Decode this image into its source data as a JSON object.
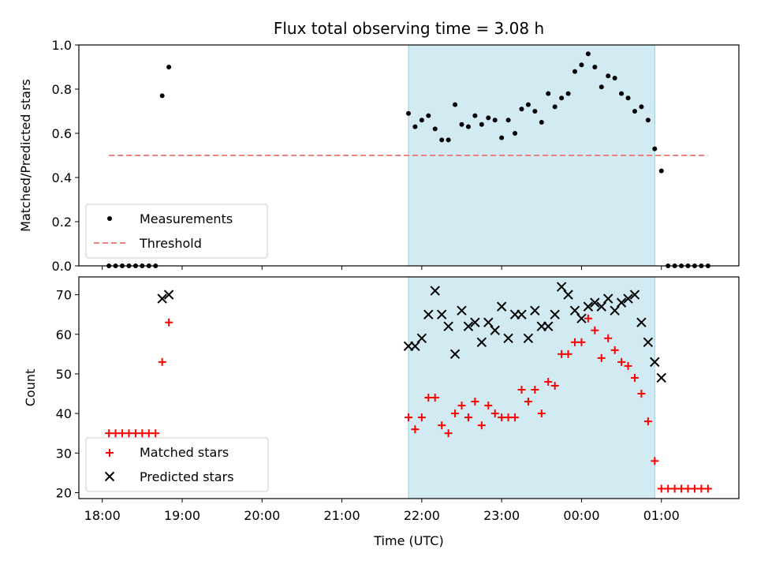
{
  "chart_data": [
    {
      "type": "scatter",
      "title": "Flux total observing time = 3.08 h",
      "xlabel": "",
      "ylabel": "Matched/Predicted stars",
      "ylim": [
        0,
        1.0
      ],
      "yticks": [
        "0.0",
        "0.2",
        "0.4",
        "0.6",
        "0.8",
        "1.0"
      ],
      "shaded_interval": [
        "21:50",
        "00:55"
      ],
      "shade_color": "#add8e6",
      "legend_position": "lower-left",
      "legend": [
        "Measurements",
        "Threshold"
      ],
      "threshold": {
        "name": "Threshold",
        "y": 0.5,
        "x_range": [
          "18:05",
          "01:35"
        ],
        "color": "#f08080"
      },
      "series": [
        {
          "name": "Measurements",
          "marker": "dot",
          "color": "#000000",
          "points": [
            [
              "18:05",
              0.0
            ],
            [
              "18:10",
              0.0
            ],
            [
              "18:15",
              0.0
            ],
            [
              "18:20",
              0.0
            ],
            [
              "18:25",
              0.0
            ],
            [
              "18:30",
              0.0
            ],
            [
              "18:35",
              0.0
            ],
            [
              "18:40",
              0.0
            ],
            [
              "18:45",
              0.77
            ],
            [
              "18:50",
              0.9
            ],
            [
              "21:50",
              0.69
            ],
            [
              "21:55",
              0.63
            ],
            [
              "22:00",
              0.66
            ],
            [
              "22:05",
              0.68
            ],
            [
              "22:10",
              0.62
            ],
            [
              "22:15",
              0.57
            ],
            [
              "22:20",
              0.57
            ],
            [
              "22:25",
              0.73
            ],
            [
              "22:30",
              0.64
            ],
            [
              "22:35",
              0.63
            ],
            [
              "22:40",
              0.68
            ],
            [
              "22:45",
              0.64
            ],
            [
              "22:50",
              0.67
            ],
            [
              "22:55",
              0.66
            ],
            [
              "23:00",
              0.58
            ],
            [
              "23:05",
              0.66
            ],
            [
              "23:10",
              0.6
            ],
            [
              "23:15",
              0.71
            ],
            [
              "23:20",
              0.73
            ],
            [
              "23:25",
              0.7
            ],
            [
              "23:30",
              0.65
            ],
            [
              "23:35",
              0.78
            ],
            [
              "23:40",
              0.72
            ],
            [
              "23:45",
              0.76
            ],
            [
              "23:50",
              0.78
            ],
            [
              "23:55",
              0.88
            ],
            [
              "00:00",
              0.91
            ],
            [
              "00:05",
              0.96
            ],
            [
              "00:10",
              0.9
            ],
            [
              "00:15",
              0.81
            ],
            [
              "00:20",
              0.86
            ],
            [
              "00:25",
              0.85
            ],
            [
              "00:30",
              0.78
            ],
            [
              "00:35",
              0.76
            ],
            [
              "00:40",
              0.7
            ],
            [
              "00:45",
              0.72
            ],
            [
              "00:50",
              0.66
            ],
            [
              "00:55",
              0.53
            ],
            [
              "01:00",
              0.43
            ],
            [
              "01:05",
              0.0
            ],
            [
              "01:10",
              0.0
            ],
            [
              "01:15",
              0.0
            ],
            [
              "01:20",
              0.0
            ],
            [
              "01:25",
              0.0
            ],
            [
              "01:30",
              0.0
            ],
            [
              "01:35",
              0.0
            ]
          ]
        }
      ]
    },
    {
      "type": "scatter",
      "xlabel": "Time (UTC)",
      "ylabel": "Count",
      "ylim": [
        18.5,
        74.5
      ],
      "yticks": [
        "20",
        "30",
        "40",
        "50",
        "60",
        "70"
      ],
      "xticks": [
        "18:00",
        "19:00",
        "20:00",
        "21:00",
        "22:00",
        "23:00",
        "00:00",
        "01:00"
      ],
      "shaded_interval": [
        "21:50",
        "00:55"
      ],
      "shade_color": "#add8e6",
      "legend_position": "lower-left",
      "legend": [
        "Matched stars",
        "Predicted stars"
      ],
      "series": [
        {
          "name": "Matched stars",
          "marker": "plus",
          "color": "#ff0000",
          "points": [
            [
              "18:05",
              35
            ],
            [
              "18:10",
              35
            ],
            [
              "18:15",
              35
            ],
            [
              "18:20",
              35
            ],
            [
              "18:25",
              35
            ],
            [
              "18:30",
              35
            ],
            [
              "18:35",
              35
            ],
            [
              "18:40",
              35
            ],
            [
              "18:45",
              53
            ],
            [
              "18:50",
              63
            ],
            [
              "21:50",
              39
            ],
            [
              "21:55",
              36
            ],
            [
              "22:00",
              39
            ],
            [
              "22:05",
              44
            ],
            [
              "22:10",
              44
            ],
            [
              "22:15",
              37
            ],
            [
              "22:20",
              35
            ],
            [
              "22:25",
              40
            ],
            [
              "22:30",
              42
            ],
            [
              "22:35",
              39
            ],
            [
              "22:40",
              43
            ],
            [
              "22:45",
              37
            ],
            [
              "22:50",
              42
            ],
            [
              "22:55",
              40
            ],
            [
              "23:00",
              39
            ],
            [
              "23:05",
              39
            ],
            [
              "23:10",
              39
            ],
            [
              "23:15",
              46
            ],
            [
              "23:20",
              43
            ],
            [
              "23:25",
              46
            ],
            [
              "23:30",
              40
            ],
            [
              "23:35",
              48
            ],
            [
              "23:40",
              47
            ],
            [
              "23:45",
              55
            ],
            [
              "23:50",
              55
            ],
            [
              "23:55",
              58
            ],
            [
              "00:00",
              58
            ],
            [
              "00:05",
              64
            ],
            [
              "00:10",
              61
            ],
            [
              "00:15",
              54
            ],
            [
              "00:20",
              59
            ],
            [
              "00:25",
              56
            ],
            [
              "00:30",
              53
            ],
            [
              "00:35",
              52
            ],
            [
              "00:40",
              49
            ],
            [
              "00:45",
              45
            ],
            [
              "00:50",
              38
            ],
            [
              "00:55",
              28
            ],
            [
              "01:00",
              21
            ],
            [
              "01:05",
              21
            ],
            [
              "01:10",
              21
            ],
            [
              "01:15",
              21
            ],
            [
              "01:20",
              21
            ],
            [
              "01:25",
              21
            ],
            [
              "01:30",
              21
            ],
            [
              "01:35",
              21
            ]
          ]
        },
        {
          "name": "Predicted stars",
          "marker": "x",
          "color": "#000000",
          "points": [
            [
              "18:45",
              69
            ],
            [
              "18:50",
              70
            ],
            [
              "21:50",
              57
            ],
            [
              "21:55",
              57
            ],
            [
              "22:00",
              59
            ],
            [
              "22:05",
              65
            ],
            [
              "22:10",
              71
            ],
            [
              "22:15",
              65
            ],
            [
              "22:20",
              62
            ],
            [
              "22:25",
              55
            ],
            [
              "22:30",
              66
            ],
            [
              "22:35",
              62
            ],
            [
              "22:40",
              63
            ],
            [
              "22:45",
              58
            ],
            [
              "22:50",
              63
            ],
            [
              "22:55",
              61
            ],
            [
              "23:00",
              67
            ],
            [
              "23:05",
              59
            ],
            [
              "23:10",
              65
            ],
            [
              "23:15",
              65
            ],
            [
              "23:20",
              59
            ],
            [
              "23:25",
              66
            ],
            [
              "23:30",
              62
            ],
            [
              "23:35",
              62
            ],
            [
              "23:40",
              65
            ],
            [
              "23:45",
              72
            ],
            [
              "23:50",
              70
            ],
            [
              "23:55",
              66
            ],
            [
              "00:00",
              64
            ],
            [
              "00:05",
              67
            ],
            [
              "00:10",
              68
            ],
            [
              "00:15",
              67
            ],
            [
              "00:20",
              69
            ],
            [
              "00:25",
              66
            ],
            [
              "00:30",
              68
            ],
            [
              "00:35",
              69
            ],
            [
              "00:40",
              70
            ],
            [
              "00:45",
              63
            ],
            [
              "00:50",
              58
            ],
            [
              "00:55",
              53
            ],
            [
              "01:00",
              49
            ]
          ]
        }
      ]
    }
  ]
}
